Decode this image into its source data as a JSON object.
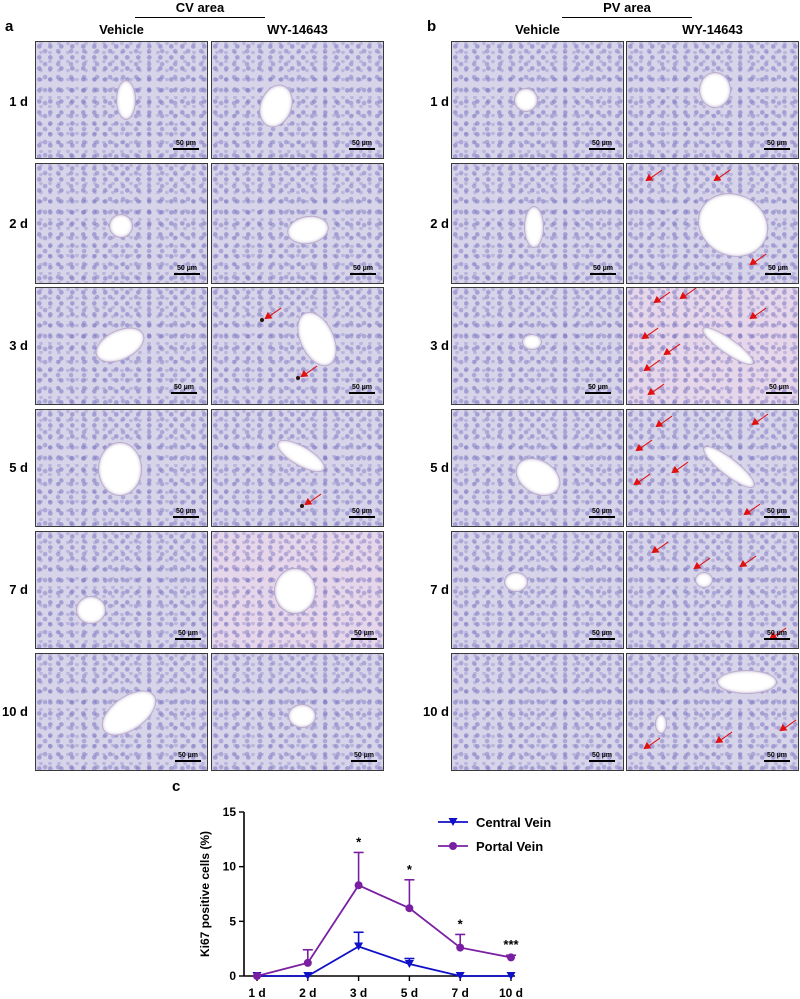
{
  "panel_a": {
    "letter": "a",
    "area_title": "CV area",
    "col_vehicle": "Vehicle",
    "col_treated": "WY-14643"
  },
  "panel_b": {
    "letter": "b",
    "area_title": "PV area",
    "col_vehicle": "Vehicle",
    "col_treated": "WY-14643"
  },
  "row_labels": [
    "1 d",
    "2 d",
    "3 d",
    "5 d",
    "7 d",
    "10 d"
  ],
  "scale_bar_label": "50 µm",
  "panel_c": {
    "letter": "c"
  },
  "colors": {
    "central_vein": "#1010c8",
    "portal_vein": "#7a1fa2",
    "arrow": "#e01010"
  },
  "chart_data": {
    "type": "line",
    "title": "",
    "xlabel": "",
    "ylabel": "Ki67 positive cells (%)",
    "categories": [
      "1 d",
      "2 d",
      "3 d",
      "5 d",
      "7 d",
      "10 d"
    ],
    "ylim": [
      0,
      15
    ],
    "yticks": [
      0,
      5,
      10,
      15
    ],
    "legend_position": "top-right",
    "grid": false,
    "series": [
      {
        "name": "Central Vein",
        "marker": "triangle-down",
        "color": "#1010c8",
        "values": [
          0,
          0,
          2.7,
          1.1,
          0,
          0
        ],
        "errors": [
          0,
          0,
          1.3,
          0.5,
          0,
          0
        ]
      },
      {
        "name": "Portal Vein",
        "marker": "circle",
        "color": "#7a1fa2",
        "values": [
          0,
          1.2,
          8.3,
          6.2,
          2.6,
          1.7
        ],
        "errors": [
          0,
          1.2,
          3.0,
          2.6,
          1.2,
          0.2
        ]
      }
    ],
    "significance": [
      "",
      "",
      "*",
      "*",
      "*",
      "***"
    ]
  }
}
